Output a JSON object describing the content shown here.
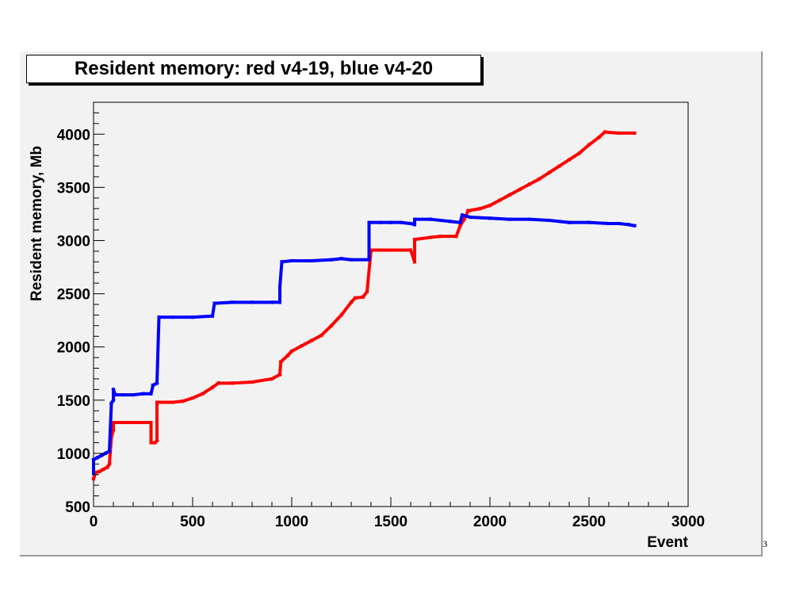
{
  "chart_data": {
    "type": "scatter",
    "title": "Resident memory: red v4-19, blue v4-20",
    "xlabel": "Event",
    "ylabel": "Resident memory, Mb",
    "xlim": [
      0,
      3000
    ],
    "ylim": [
      500,
      4300
    ],
    "x_ticks": [
      0,
      500,
      1000,
      1500,
      2000,
      2500,
      3000
    ],
    "y_ticks": [
      500,
      1000,
      1500,
      2000,
      2500,
      3000,
      3500,
      4000
    ],
    "grid": false,
    "series": [
      {
        "color": "#ff0000",
        "points": [
          [
            0,
            760
          ],
          [
            10,
            820
          ],
          [
            30,
            830
          ],
          [
            50,
            850
          ],
          [
            70,
            870
          ],
          [
            80,
            900
          ],
          [
            90,
            1150
          ],
          [
            100,
            1220
          ],
          [
            100,
            1290
          ],
          [
            150,
            1290
          ],
          [
            200,
            1290
          ],
          [
            290,
            1290
          ],
          [
            290,
            1100
          ],
          [
            310,
            1100
          ],
          [
            320,
            1120
          ],
          [
            320,
            1480
          ],
          [
            400,
            1480
          ],
          [
            450,
            1490
          ],
          [
            500,
            1520
          ],
          [
            550,
            1560
          ],
          [
            600,
            1620
          ],
          [
            630,
            1660
          ],
          [
            700,
            1660
          ],
          [
            800,
            1670
          ],
          [
            900,
            1700
          ],
          [
            940,
            1740
          ],
          [
            945,
            1860
          ],
          [
            980,
            1920
          ],
          [
            1000,
            1960
          ],
          [
            1050,
            2010
          ],
          [
            1100,
            2060
          ],
          [
            1150,
            2110
          ],
          [
            1200,
            2200
          ],
          [
            1250,
            2300
          ],
          [
            1300,
            2420
          ],
          [
            1320,
            2460
          ],
          [
            1360,
            2470
          ],
          [
            1380,
            2520
          ],
          [
            1400,
            2910
          ],
          [
            1500,
            2910
          ],
          [
            1600,
            2910
          ],
          [
            1620,
            2800
          ],
          [
            1620,
            3010
          ],
          [
            1700,
            3030
          ],
          [
            1750,
            3040
          ],
          [
            1830,
            3040
          ],
          [
            1850,
            3140
          ],
          [
            1870,
            3200
          ],
          [
            1890,
            3280
          ],
          [
            1950,
            3300
          ],
          [
            2000,
            3330
          ],
          [
            2050,
            3380
          ],
          [
            2100,
            3430
          ],
          [
            2150,
            3480
          ],
          [
            2200,
            3530
          ],
          [
            2250,
            3580
          ],
          [
            2300,
            3640
          ],
          [
            2350,
            3700
          ],
          [
            2400,
            3760
          ],
          [
            2450,
            3820
          ],
          [
            2500,
            3900
          ],
          [
            2550,
            3970
          ],
          [
            2580,
            4020
          ],
          [
            2650,
            4010
          ],
          [
            2730,
            4010
          ]
        ]
      },
      {
        "color": "#0000ff",
        "points": [
          [
            0,
            810
          ],
          [
            0,
            940
          ],
          [
            20,
            960
          ],
          [
            40,
            980
          ],
          [
            60,
            1000
          ],
          [
            80,
            1020
          ],
          [
            90,
            1470
          ],
          [
            100,
            1500
          ],
          [
            100,
            1600
          ],
          [
            110,
            1550
          ],
          [
            150,
            1550
          ],
          [
            200,
            1550
          ],
          [
            250,
            1560
          ],
          [
            290,
            1560
          ],
          [
            300,
            1640
          ],
          [
            320,
            1660
          ],
          [
            330,
            2280
          ],
          [
            400,
            2280
          ],
          [
            500,
            2280
          ],
          [
            600,
            2290
          ],
          [
            610,
            2410
          ],
          [
            700,
            2420
          ],
          [
            800,
            2420
          ],
          [
            900,
            2420
          ],
          [
            940,
            2420
          ],
          [
            940,
            2560
          ],
          [
            950,
            2800
          ],
          [
            1000,
            2810
          ],
          [
            1100,
            2810
          ],
          [
            1200,
            2820
          ],
          [
            1250,
            2830
          ],
          [
            1300,
            2820
          ],
          [
            1390,
            2820
          ],
          [
            1390,
            3170
          ],
          [
            1450,
            3170
          ],
          [
            1500,
            3170
          ],
          [
            1550,
            3170
          ],
          [
            1600,
            3160
          ],
          [
            1620,
            3150
          ],
          [
            1620,
            3200
          ],
          [
            1700,
            3200
          ],
          [
            1750,
            3190
          ],
          [
            1800,
            3180
          ],
          [
            1850,
            3170
          ],
          [
            1860,
            3240
          ],
          [
            1900,
            3220
          ],
          [
            2000,
            3210
          ],
          [
            2100,
            3200
          ],
          [
            2200,
            3200
          ],
          [
            2300,
            3190
          ],
          [
            2400,
            3170
          ],
          [
            2500,
            3170
          ],
          [
            2600,
            3160
          ],
          [
            2650,
            3160
          ],
          [
            2700,
            3150
          ],
          [
            2730,
            3140
          ]
        ]
      }
    ]
  },
  "page_number": "3"
}
